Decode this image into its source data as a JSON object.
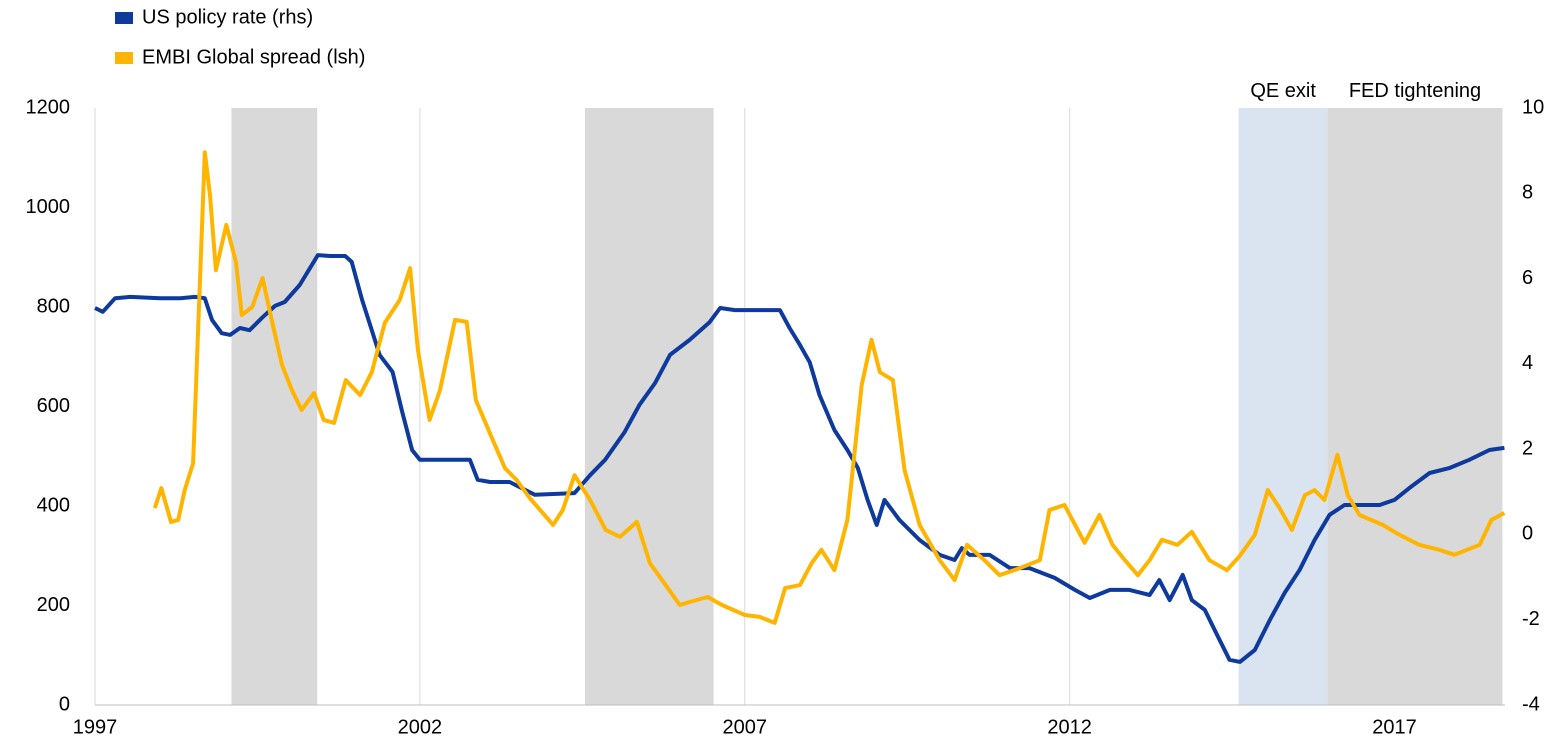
{
  "chart_data": {
    "type": "line",
    "xlim": [
      1997,
      2018.7
    ],
    "xticks": [
      1997,
      2002,
      2007,
      2012,
      2017
    ],
    "ylim": [
      0,
      1200
    ],
    "yticks": [
      0,
      200,
      400,
      600,
      800,
      1000,
      1200
    ],
    "y2lim": [
      -4,
      10
    ],
    "y2ticks": [
      -4,
      -2,
      0,
      2,
      4,
      6,
      8,
      10
    ],
    "grid": "x",
    "legend": "top-left",
    "bands": [
      {
        "start": 1999.1,
        "end": 2000.42,
        "color": "#d9d9d9"
      },
      {
        "start": 2004.54,
        "end": 2006.52,
        "color": "#d9d9d9"
      },
      {
        "start": 2014.6,
        "end": 2015.97,
        "color": "#dae4f0",
        "label": "QE exit"
      },
      {
        "start": 2015.97,
        "end": 2018.66,
        "color": "#d9d9d9",
        "label": "FED tightening"
      }
    ],
    "series": [
      {
        "name": "US policy rate (rhs)",
        "color": "#0d3a9c",
        "axis": "y2",
        "x": [
          1997.0,
          1997.12,
          1997.31,
          1997.54,
          1998.0,
          1998.31,
          1998.54,
          1998.69,
          1998.8,
          1998.95,
          1999.08,
          1999.23,
          1999.38,
          1999.57,
          1999.77,
          1999.92,
          2000.15,
          2000.43,
          2000.62,
          2000.85,
          2000.95,
          2001.11,
          2001.26,
          2001.38,
          2001.58,
          2001.72,
          2001.88,
          2002.0,
          2002.62,
          2002.77,
          2002.89,
          2003.08,
          2003.38,
          2003.77,
          2004.38,
          2004.62,
          2004.85,
          2005.15,
          2005.38,
          2005.62,
          2005.85,
          2006.15,
          2006.46,
          2006.62,
          2006.85,
          2007.54,
          2007.69,
          2007.85,
          2008.0,
          2008.15,
          2008.38,
          2008.58,
          2008.74,
          2008.89,
          2009.03,
          2009.15,
          2009.38,
          2009.69,
          2010.0,
          2010.23,
          2010.34,
          2010.46,
          2010.77,
          2011.08,
          2011.38,
          2011.77,
          2012.08,
          2012.31,
          2012.62,
          2012.92,
          2013.23,
          2013.38,
          2013.54,
          2013.74,
          2013.88,
          2014.08,
          2014.23,
          2014.46,
          2014.62,
          2014.85,
          2015.08,
          2015.31,
          2015.54,
          2015.77,
          2016.0,
          2016.23,
          2016.77,
          2017.0,
          2017.23,
          2017.54,
          2017.85,
          2018.15,
          2018.46,
          2018.69
        ],
        "values": [
          5.31,
          5.22,
          5.54,
          5.57,
          5.54,
          5.54,
          5.57,
          5.54,
          5.03,
          4.72,
          4.68,
          4.84,
          4.79,
          5.08,
          5.36,
          5.45,
          5.85,
          6.55,
          6.53,
          6.53,
          6.39,
          5.5,
          4.79,
          4.21,
          3.81,
          2.92,
          1.98,
          1.75,
          1.75,
          1.75,
          1.28,
          1.23,
          1.23,
          0.93,
          0.97,
          1.39,
          1.75,
          2.4,
          3.04,
          3.55,
          4.21,
          4.56,
          4.98,
          5.31,
          5.26,
          5.26,
          4.84,
          4.44,
          4.04,
          3.27,
          2.45,
          1.98,
          1.56,
          0.81,
          0.22,
          0.81,
          0.34,
          -0.13,
          -0.48,
          -0.6,
          -0.32,
          -0.48,
          -0.48,
          -0.79,
          -0.79,
          -1.02,
          -1.3,
          -1.49,
          -1.3,
          -1.3,
          -1.42,
          -1.07,
          -1.54,
          -0.95,
          -1.54,
          -1.77,
          -2.24,
          -2.94,
          -2.99,
          -2.71,
          -2.01,
          -1.37,
          -0.83,
          -0.13,
          0.46,
          0.69,
          0.69,
          0.81,
          1.09,
          1.44,
          1.56,
          1.75,
          1.98,
          2.03
        ]
      },
      {
        "name": "EMBI Global spread (lsh)",
        "color": "#ffb400",
        "x": [
          1997.92,
          1998.02,
          1998.17,
          1998.28,
          1998.38,
          1998.51,
          1998.69,
          1998.77,
          1998.86,
          1999.02,
          1999.17,
          1999.26,
          1999.42,
          1999.58,
          1999.72,
          1999.88,
          2000.03,
          2000.18,
          2000.37,
          2000.52,
          2000.68,
          2000.86,
          2001.08,
          2001.26,
          2001.46,
          2001.69,
          2001.85,
          2001.97,
          2002.15,
          2002.31,
          2002.54,
          2002.72,
          2002.86,
          2003.12,
          2003.31,
          2003.49,
          2003.69,
          2004.05,
          2004.2,
          2004.38,
          2004.62,
          2004.86,
          2005.08,
          2005.34,
          2005.54,
          2005.75,
          2006.0,
          2006.15,
          2006.43,
          2006.65,
          2007.0,
          2007.23,
          2007.46,
          2007.62,
          2007.85,
          2008.03,
          2008.18,
          2008.38,
          2008.58,
          2008.8,
          2008.95,
          2009.08,
          2009.28,
          2009.46,
          2009.69,
          2010.0,
          2010.23,
          2010.42,
          2010.69,
          2010.92,
          2011.23,
          2011.54,
          2011.69,
          2011.92,
          2012.23,
          2012.46,
          2012.66,
          2012.85,
          2013.05,
          2013.23,
          2013.42,
          2013.66,
          2013.88,
          2014.15,
          2014.42,
          2014.62,
          2014.85,
          2015.05,
          2015.23,
          2015.42,
          2015.62,
          2015.77,
          2015.92,
          2016.12,
          2016.28,
          2016.46,
          2016.82,
          2017.08,
          2017.38,
          2017.69,
          2017.92,
          2018.31,
          2018.49,
          2018.69
        ],
        "values": [
          396,
          436,
          368,
          372,
          432,
          486,
          1111,
          1025,
          874,
          965,
          890,
          784,
          800,
          858,
          774,
          683,
          633,
          593,
          627,
          573,
          567,
          653,
          623,
          669,
          768,
          814,
          878,
          714,
          573,
          633,
          774,
          770,
          613,
          533,
          476,
          452,
          416,
          362,
          392,
          462,
          412,
          352,
          338,
          368,
          285,
          247,
          201,
          207,
          217,
          201,
          181,
          177,
          165,
          235,
          241,
          285,
          312,
          271,
          372,
          643,
          734,
          669,
          653,
          472,
          362,
          291,
          251,
          322,
          291,
          261,
          275,
          291,
          392,
          402,
          326,
          382,
          322,
          291,
          261,
          291,
          332,
          322,
          348,
          291,
          271,
          300,
          342,
          432,
          396,
          352,
          422,
          432,
          412,
          503,
          422,
          382,
          362,
          342,
          322,
          312,
          302,
          322,
          372,
          386
        ]
      }
    ]
  }
}
